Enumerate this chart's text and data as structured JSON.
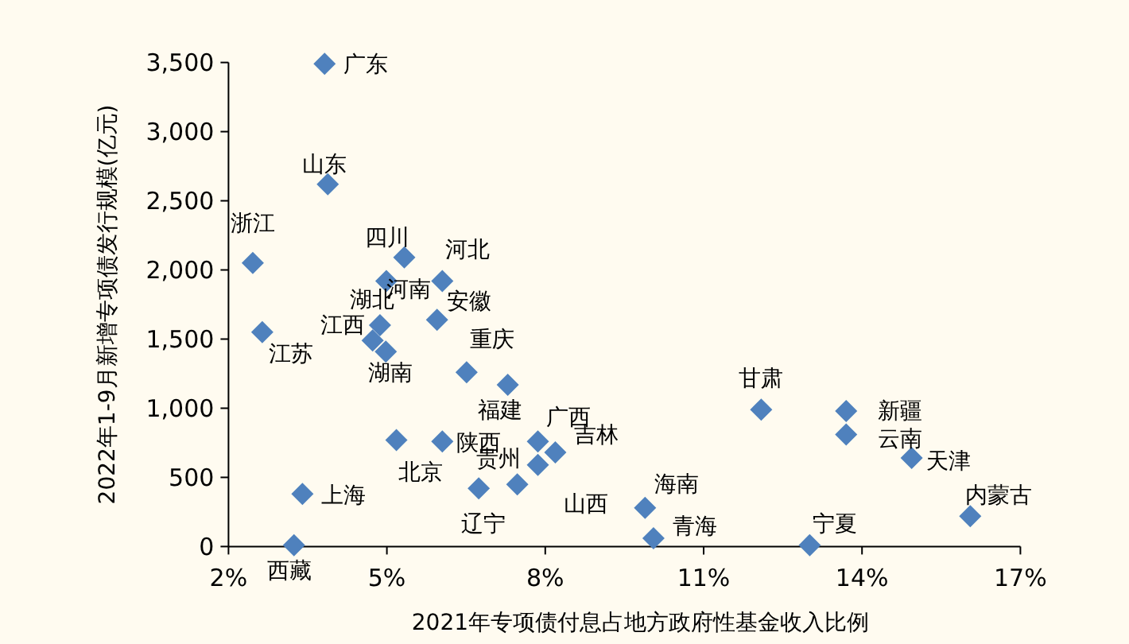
{
  "chart_data": {
    "type": "scatter",
    "xlabel": "2021年专项债付息占地方政府性基金收入比例",
    "ylabel": "2022年1-9月新增专项债发行规模(亿元)",
    "xlim": [
      2,
      17
    ],
    "xticks": [
      {
        "value": 2,
        "label": "2%"
      },
      {
        "value": 5,
        "label": "5%"
      },
      {
        "value": 8,
        "label": "8%"
      },
      {
        "value": 11,
        "label": "11%"
      },
      {
        "value": 14,
        "label": "14%"
      },
      {
        "value": 17,
        "label": "17%"
      }
    ],
    "ylim": [
      0,
      3500
    ],
    "yticks": [
      0,
      500,
      {
        "value": 1000,
        "label": "1,000"
      },
      {
        "value": 1500,
        "label": "1,500"
      },
      {
        "value": 2000,
        "label": "2,000"
      },
      {
        "value": 2500,
        "label": "2,500"
      },
      {
        "value": 3000,
        "label": "3,000"
      },
      {
        "value": 3500,
        "label": "3,500"
      }
    ],
    "marker": "diamond",
    "series": [
      {
        "color": "#4f81bd",
        "x": [
          3.82,
          3.88,
          2.46,
          5.33,
          4.99,
          6.05,
          5.95,
          4.87,
          4.73,
          4.98,
          2.64,
          6.51,
          7.29,
          6.05,
          5.18,
          7.47,
          6.74,
          7.86,
          8.19,
          7.86,
          9.89,
          10.05,
          12.09,
          13.7,
          13.7,
          14.94,
          16.05,
          13.01,
          3.4,
          3.24
        ],
        "values": [
          3490,
          2620,
          2050,
          2090,
          1920,
          1920,
          1640,
          1600,
          1490,
          1410,
          1550,
          1260,
          1170,
          760,
          770,
          450,
          420,
          760,
          680,
          590,
          280,
          60,
          990,
          980,
          810,
          640,
          220,
          10,
          380,
          10
        ]
      }
    ],
    "annotations": [
      {
        "text": "广东",
        "x": 3.82,
        "y": 3490
      },
      {
        "text": "山东",
        "x": 3.88,
        "y": 2618
      },
      {
        "text": "浙江",
        "x": 2.46,
        "y": 2051
      },
      {
        "text": "四川",
        "x": 5.33,
        "y": 2086
      },
      {
        "text": "河南",
        "x": 4.99,
        "y": 1920
      },
      {
        "text": "河北",
        "x": 6.05,
        "y": 1920
      },
      {
        "text": "安徽",
        "x": 5.95,
        "y": 1641
      },
      {
        "text": "湖北",
        "x": 4.87,
        "y": 1603
      },
      {
        "text": "江西",
        "x": 4.73,
        "y": 1488
      },
      {
        "text": "湖南",
        "x": 4.98,
        "y": 1411
      },
      {
        "text": "江苏",
        "x": 2.64,
        "y": 1545
      },
      {
        "text": "重庆",
        "x": 6.51,
        "y": 1258
      },
      {
        "text": "福建",
        "x": 7.29,
        "y": 1173
      },
      {
        "text": "陕西",
        "x": 6.05,
        "y": 763
      },
      {
        "text": "北京",
        "x": 5.18,
        "y": 770
      },
      {
        "text": "贵州",
        "x": 7.47,
        "y": 445
      },
      {
        "text": "辽宁",
        "x": 6.74,
        "y": 422
      },
      {
        "text": "广西",
        "x": 7.86,
        "y": 763
      },
      {
        "text": "吉林",
        "x": 8.19,
        "y": 675
      },
      {
        "text": "山西",
        "x": 7.86,
        "y": 586
      },
      {
        "text": "海南",
        "x": 9.89,
        "y": 281
      },
      {
        "text": "青海",
        "x": 10.05,
        "y": 58
      },
      {
        "text": "甘肃",
        "x": 12.09,
        "y": 989
      },
      {
        "text": "新疆",
        "x": 13.7,
        "y": 982
      },
      {
        "text": "云南",
        "x": 13.7,
        "y": 805
      },
      {
        "text": "天津",
        "x": 14.94,
        "y": 644
      },
      {
        "text": "内蒙古",
        "x": 16.05,
        "y": 223
      },
      {
        "text": "宁夏",
        "x": 13.01,
        "y": 5
      },
      {
        "text": "上海",
        "x": 3.4,
        "y": 376
      },
      {
        "text": "西藏",
        "x": 3.24,
        "y": 12
      }
    ]
  }
}
